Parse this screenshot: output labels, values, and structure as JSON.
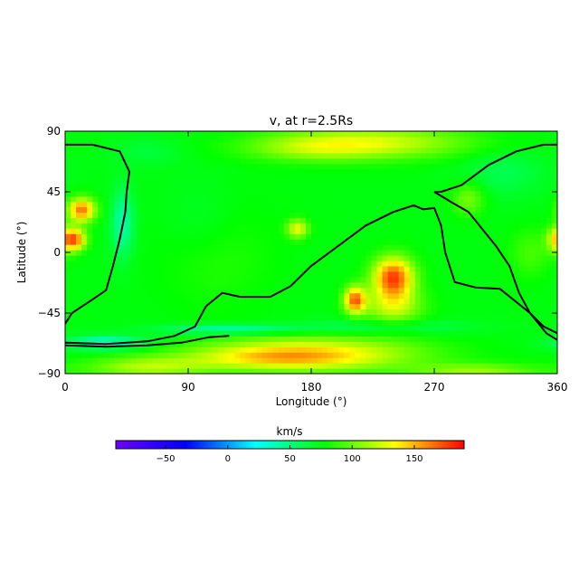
{
  "chart_data": {
    "type": "heatmap",
    "title": "v, at r=2.5Rs",
    "xlabel": "Longitude (°)",
    "ylabel": "Latitude (°)",
    "xlim": [
      0,
      360
    ],
    "ylim": [
      -90,
      90
    ],
    "xticks": [
      0,
      90,
      180,
      270,
      360
    ],
    "yticks": [
      -90,
      -45,
      0,
      45,
      90
    ],
    "colorbar": {
      "label": "km/s",
      "range": [
        -90,
        190
      ],
      "ticks": [
        -50,
        0,
        50,
        100,
        150
      ],
      "colormap": [
        "#7000ff",
        "#0000ff",
        "#00ffff",
        "#00ff00",
        "#ffff00",
        "#ff0000"
      ]
    },
    "neutral_line_color": "#000000",
    "field": {
      "background": 75,
      "components": [
        {
          "lon": 180,
          "lat": -75,
          "slon": 80,
          "slat": 13,
          "v": 60
        },
        {
          "lon": 150,
          "lat": -78,
          "slon": 60,
          "slat": 8,
          "v": 30
        },
        {
          "lon": 60,
          "lat": -85,
          "slon": 45,
          "slat": 8,
          "v": 40
        },
        {
          "lon": 300,
          "lat": -88,
          "slon": 45,
          "slat": 6,
          "v": 35
        },
        {
          "lon": 230,
          "lat": 82,
          "slon": 70,
          "slat": 12,
          "v": 45
        },
        {
          "lon": 180,
          "lat": 78,
          "slon": 50,
          "slat": 10,
          "v": 30
        },
        {
          "lon": 12,
          "lat": 32,
          "slon": 10,
          "slat": 9,
          "v": 90
        },
        {
          "lon": 8,
          "lat": 10,
          "slon": 8,
          "slat": 8,
          "v": 75
        },
        {
          "lon": 240,
          "lat": -18,
          "slon": 15,
          "slat": 15,
          "v": 100
        },
        {
          "lon": 240,
          "lat": -40,
          "slon": 22,
          "slat": 14,
          "v": 45
        },
        {
          "lon": 212,
          "lat": -35,
          "slon": 8,
          "slat": 10,
          "v": 90
        },
        {
          "lon": 170,
          "lat": 18,
          "slon": 8,
          "slat": 7,
          "v": 55
        },
        {
          "lon": 295,
          "lat": 40,
          "slon": 12,
          "slat": 12,
          "v": 30
        },
        {
          "lon": 360,
          "lat": 10,
          "slon": 8,
          "slat": 10,
          "v": 55
        },
        {
          "lon": 120,
          "lat": -57,
          "slon": 50,
          "slat": 4,
          "v": -35
        },
        {
          "lon": 230,
          "lat": -55,
          "slon": 60,
          "slat": 6,
          "v": -20
        },
        {
          "lon": 100,
          "lat": 22,
          "slon": 28,
          "slat": 30,
          "v": -10
        },
        {
          "lon": 30,
          "lat": -67,
          "slon": 30,
          "slat": 5,
          "v": -45
        },
        {
          "lon": 42,
          "lat": 22,
          "slon": 8,
          "slat": 25,
          "v": -35
        },
        {
          "lon": 340,
          "lat": 0,
          "slon": 15,
          "slat": 18,
          "v": 18
        },
        {
          "lon": 110,
          "lat": 0,
          "slon": 40,
          "slat": 40,
          "v": 12
        },
        {
          "lon": 320,
          "lat": 60,
          "slon": 30,
          "slat": 18,
          "v": -15
        },
        {
          "lon": 60,
          "lat": 75,
          "slon": 25,
          "slat": 10,
          "v": -10
        }
      ]
    },
    "neutral_lines": [
      {
        "name": "",
        "points": [
          [
            0,
            80
          ],
          [
            20,
            80
          ],
          [
            40,
            75
          ],
          [
            47,
            60
          ],
          [
            45,
            45
          ],
          [
            44,
            30
          ],
          [
            40,
            10
          ],
          [
            35,
            -10
          ],
          [
            30,
            -28
          ],
          [
            20,
            -35
          ],
          [
            5,
            -45
          ],
          [
            0,
            -53
          ]
        ]
      },
      {
        "name": "",
        "points": [
          [
            0,
            -67
          ],
          [
            30,
            -68
          ],
          [
            60,
            -66
          ],
          [
            80,
            -62
          ],
          [
            95,
            -55
          ],
          [
            103,
            -40
          ],
          [
            115,
            -30
          ],
          [
            128,
            -33
          ],
          [
            150,
            -33
          ],
          [
            165,
            -25
          ],
          [
            180,
            -10
          ],
          [
            200,
            5
          ],
          [
            220,
            20
          ],
          [
            240,
            30
          ],
          [
            255,
            35
          ],
          [
            262,
            32
          ],
          [
            270,
            33
          ],
          [
            275,
            20
          ],
          [
            278,
            0
          ],
          [
            285,
            -22
          ],
          [
            300,
            -26
          ],
          [
            318,
            -27
          ],
          [
            340,
            -45
          ],
          [
            350,
            -55
          ],
          [
            360,
            -60
          ]
        ]
      },
      {
        "name": "",
        "points": [
          [
            0,
            -69
          ],
          [
            30,
            -70
          ],
          [
            60,
            -69
          ],
          [
            85,
            -67
          ],
          [
            105,
            -63
          ],
          [
            120,
            -62
          ]
        ]
      },
      {
        "name": "",
        "points": [
          [
            270,
            45
          ],
          [
            275,
            45
          ],
          [
            290,
            50
          ],
          [
            310,
            65
          ],
          [
            330,
            75
          ],
          [
            350,
            80
          ],
          [
            360,
            80
          ]
        ]
      },
      {
        "name": "",
        "points": [
          [
            270,
            45
          ],
          [
            283,
            37
          ],
          [
            295,
            30
          ],
          [
            315,
            5
          ],
          [
            325,
            -10
          ],
          [
            332,
            -30
          ],
          [
            340,
            -45
          ],
          [
            352,
            -60
          ],
          [
            360,
            -65
          ]
        ]
      }
    ]
  }
}
